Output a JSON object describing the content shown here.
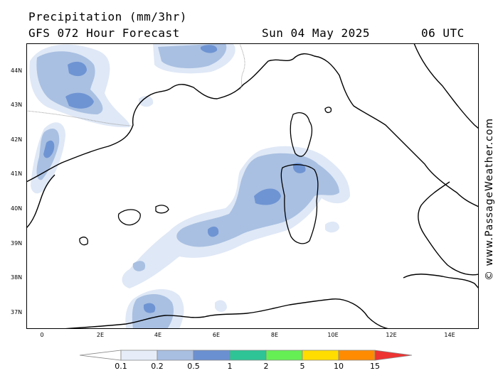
{
  "header": {
    "title": "Precipitation (mm/3hr)",
    "subtitle": "GFS 072 Hour Forecast",
    "date": "Sun 04 May 2025",
    "time": "06 UTC"
  },
  "watermark": "© www.PassageWeather.com",
  "map": {
    "lat_labels": [
      "44N",
      "43N",
      "42N",
      "41N",
      "40N",
      "39N",
      "38N",
      "37N"
    ],
    "lon_labels": [
      "0",
      "2E",
      "4E",
      "6E",
      "8E",
      "10E",
      "12E",
      "14E"
    ],
    "colors": {
      "land_border": "#000000",
      "country_border": "#9a9a9a",
      "precip_0_1": "#dfe8f6",
      "precip_0_2": "#a9c0e2",
      "precip_0_5": "#6f94d3"
    }
  },
  "legend": {
    "labels": [
      "0.1",
      "0.2",
      "0.5",
      "1",
      "2",
      "5",
      "10",
      "15"
    ],
    "colors": [
      "#e6edf8",
      "#a8bfe2",
      "#6b90d2",
      "#2ec495",
      "#66ee55",
      "#ffdd00",
      "#ff8c00",
      "#ee3333"
    ]
  }
}
